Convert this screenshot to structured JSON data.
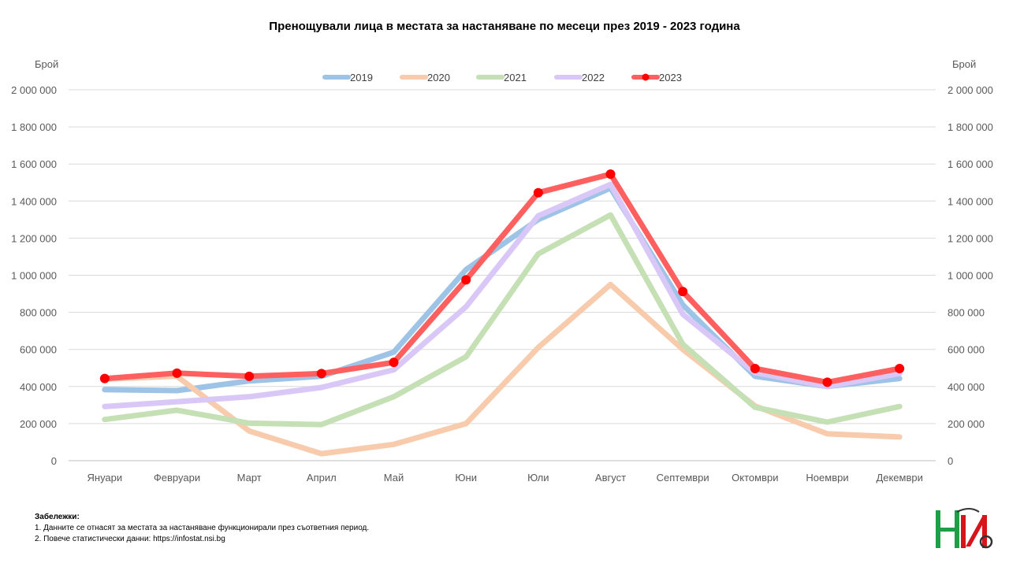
{
  "chart_data": {
    "type": "line",
    "title": "Пренощували лица в местата за настаняване  по месеци през 2019 - 2023 година",
    "ylabel_left": "Брой",
    "ylabel_right": "Брой",
    "ylim": [
      0,
      2000000
    ],
    "yticks": [
      0,
      200000,
      400000,
      600000,
      800000,
      1000000,
      1200000,
      1400000,
      1600000,
      1800000,
      2000000
    ],
    "ytick_labels": [
      "0",
      "200 000",
      "400 000",
      "600 000",
      "800 000",
      "1 000 000",
      "1 200 000",
      "1 400 000",
      "1 600 000",
      "1 800 000",
      "2 000 000"
    ],
    "categories": [
      "Януари",
      "Февруари",
      "Март",
      "Април",
      "Май",
      "Юни",
      "Юли",
      "Август",
      "Септември",
      "Октомври",
      "Ноември",
      "Декември"
    ],
    "grid": true,
    "legend_position": "top",
    "series": [
      {
        "name": "2019",
        "color": "#9DC3E6",
        "markers": false,
        "values": [
          383000,
          378000,
          430000,
          455000,
          585000,
          1030000,
          1300000,
          1470000,
          840000,
          455000,
          400000,
          443000
        ]
      },
      {
        "name": "2020",
        "color": "#F8CBAD",
        "markers": false,
        "values": [
          440000,
          455000,
          160000,
          38000,
          88000,
          200000,
          610000,
          950000,
          600000,
          295000,
          145000,
          128000
        ]
      },
      {
        "name": "2021",
        "color": "#C5E0B4",
        "markers": false,
        "values": [
          222000,
          272000,
          202000,
          195000,
          345000,
          560000,
          1115000,
          1325000,
          628000,
          288000,
          208000,
          292000
        ]
      },
      {
        "name": "2022",
        "color": "#D9C8F7",
        "markers": false,
        "values": [
          292000,
          318000,
          345000,
          395000,
          490000,
          830000,
          1320000,
          1490000,
          790000,
          475000,
          400000,
          470000
        ]
      },
      {
        "name": "2023",
        "color": "#FF5F5F",
        "marker_color": "#FF0000",
        "markers": true,
        "values": [
          443000,
          472000,
          455000,
          470000,
          530000,
          975000,
          1445000,
          1545000,
          912000,
          497000,
          423000,
          497000
        ]
      }
    ]
  },
  "notes": {
    "title": "Забележки:",
    "line1": "1. Данните се отнасят за местата за настаняване функционирали през съответния период.",
    "line2": "2. Повече статистически данни: https://infostat.nsi.bg"
  }
}
